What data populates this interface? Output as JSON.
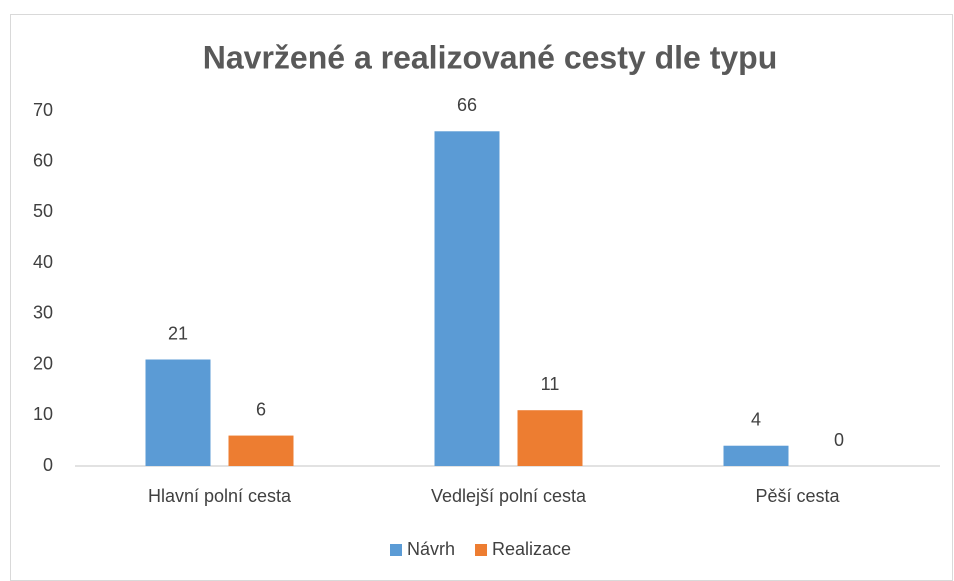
{
  "chart_data": {
    "type": "bar",
    "title": "Navržené a realizované cesty dle typu",
    "categories": [
      "Hlavní polní cesta",
      "Vedlejší polní cesta",
      "Pěší cesta"
    ],
    "series": [
      {
        "name": "Návrh",
        "color": "#5b9bd5",
        "values": [
          21,
          66,
          4
        ]
      },
      {
        "name": "Realizace",
        "color": "#ed7d31",
        "values": [
          6,
          11,
          0
        ]
      }
    ],
    "ylim": [
      0,
      70
    ],
    "yticks": [
      0,
      10,
      20,
      30,
      40,
      50,
      60,
      70
    ],
    "grid": false,
    "legend": "bottom"
  }
}
